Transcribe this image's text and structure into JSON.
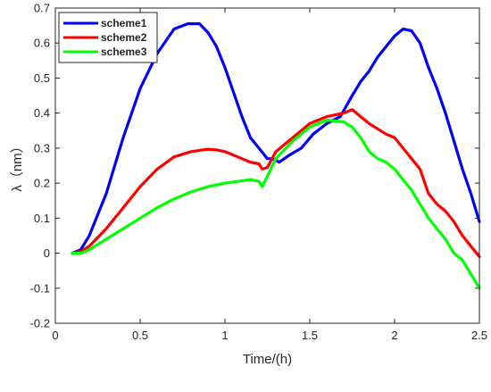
{
  "chart_data": {
    "type": "line",
    "title": "",
    "xlabel": "Time/(h)",
    "ylabel": "λ（nm）",
    "xlim": [
      0,
      2.5
    ],
    "ylim": [
      -0.2,
      0.7
    ],
    "xticks": [
      "0",
      "0.5",
      "1",
      "1.5",
      "2",
      "2.5"
    ],
    "yticks": [
      "-0.2",
      "-0.1",
      "0",
      "0.1",
      "0.2",
      "0.3",
      "0.4",
      "0.5",
      "0.6",
      "0.7"
    ],
    "grid": false,
    "legend_position": "top-left",
    "series": [
      {
        "name": "scheme1",
        "color": "#0000ff",
        "x": [
          0.1,
          0.15,
          0.2,
          0.3,
          0.4,
          0.5,
          0.6,
          0.7,
          0.78,
          0.85,
          0.9,
          0.95,
          1.0,
          1.05,
          1.1,
          1.15,
          1.2,
          1.25,
          1.28,
          1.32,
          1.38,
          1.45,
          1.52,
          1.6,
          1.68,
          1.75,
          1.8,
          1.85,
          1.9,
          1.95,
          2.0,
          2.05,
          2.1,
          2.15,
          2.2,
          2.25,
          2.3,
          2.35,
          2.4,
          2.45,
          2.5
        ],
        "y": [
          0.0,
          0.01,
          0.05,
          0.17,
          0.33,
          0.47,
          0.57,
          0.64,
          0.655,
          0.655,
          0.63,
          0.59,
          0.53,
          0.46,
          0.39,
          0.33,
          0.3,
          0.27,
          0.27,
          0.26,
          0.28,
          0.3,
          0.34,
          0.37,
          0.39,
          0.45,
          0.49,
          0.52,
          0.56,
          0.59,
          0.62,
          0.64,
          0.635,
          0.6,
          0.53,
          0.47,
          0.4,
          0.32,
          0.24,
          0.17,
          0.09
        ]
      },
      {
        "name": "scheme2",
        "color": "#ff0000",
        "x": [
          0.1,
          0.15,
          0.2,
          0.3,
          0.4,
          0.5,
          0.6,
          0.7,
          0.8,
          0.9,
          0.95,
          1.0,
          1.05,
          1.1,
          1.15,
          1.2,
          1.22,
          1.25,
          1.3,
          1.4,
          1.5,
          1.6,
          1.7,
          1.75,
          1.8,
          1.85,
          1.9,
          1.95,
          2.0,
          2.05,
          2.1,
          2.15,
          2.2,
          2.25,
          2.3,
          2.35,
          2.4,
          2.45,
          2.5
        ],
        "y": [
          0.0,
          0.005,
          0.02,
          0.07,
          0.13,
          0.19,
          0.24,
          0.275,
          0.29,
          0.297,
          0.295,
          0.29,
          0.28,
          0.27,
          0.26,
          0.255,
          0.24,
          0.245,
          0.29,
          0.33,
          0.37,
          0.39,
          0.4,
          0.41,
          0.39,
          0.37,
          0.355,
          0.34,
          0.33,
          0.3,
          0.27,
          0.24,
          0.17,
          0.14,
          0.12,
          0.09,
          0.05,
          0.02,
          -0.01
        ]
      },
      {
        "name": "scheme3",
        "color": "#00ff00",
        "x": [
          0.1,
          0.15,
          0.2,
          0.3,
          0.4,
          0.5,
          0.6,
          0.7,
          0.8,
          0.9,
          1.0,
          1.1,
          1.15,
          1.2,
          1.22,
          1.25,
          1.3,
          1.4,
          1.5,
          1.6,
          1.7,
          1.75,
          1.8,
          1.85,
          1.9,
          1.95,
          2.0,
          2.05,
          2.1,
          2.15,
          2.2,
          2.25,
          2.3,
          2.35,
          2.4,
          2.45,
          2.5
        ],
        "y": [
          0.0,
          0.0,
          0.01,
          0.04,
          0.07,
          0.1,
          0.13,
          0.155,
          0.175,
          0.19,
          0.2,
          0.207,
          0.21,
          0.205,
          0.19,
          0.22,
          0.27,
          0.32,
          0.36,
          0.38,
          0.375,
          0.36,
          0.33,
          0.29,
          0.27,
          0.26,
          0.24,
          0.21,
          0.18,
          0.14,
          0.1,
          0.07,
          0.04,
          0.0,
          -0.02,
          -0.06,
          -0.1
        ]
      }
    ]
  }
}
